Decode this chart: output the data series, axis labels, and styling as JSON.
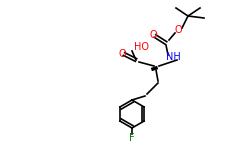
{
  "bg_color": "#ffffff",
  "atom_colors": {
    "O": "#ff0000",
    "N": "#0000ff",
    "C": "#000000",
    "F": "#008000",
    "H": "#000000"
  },
  "bond_width": 1.2,
  "figsize": [
    2.42,
    1.5
  ],
  "dpi": 100
}
